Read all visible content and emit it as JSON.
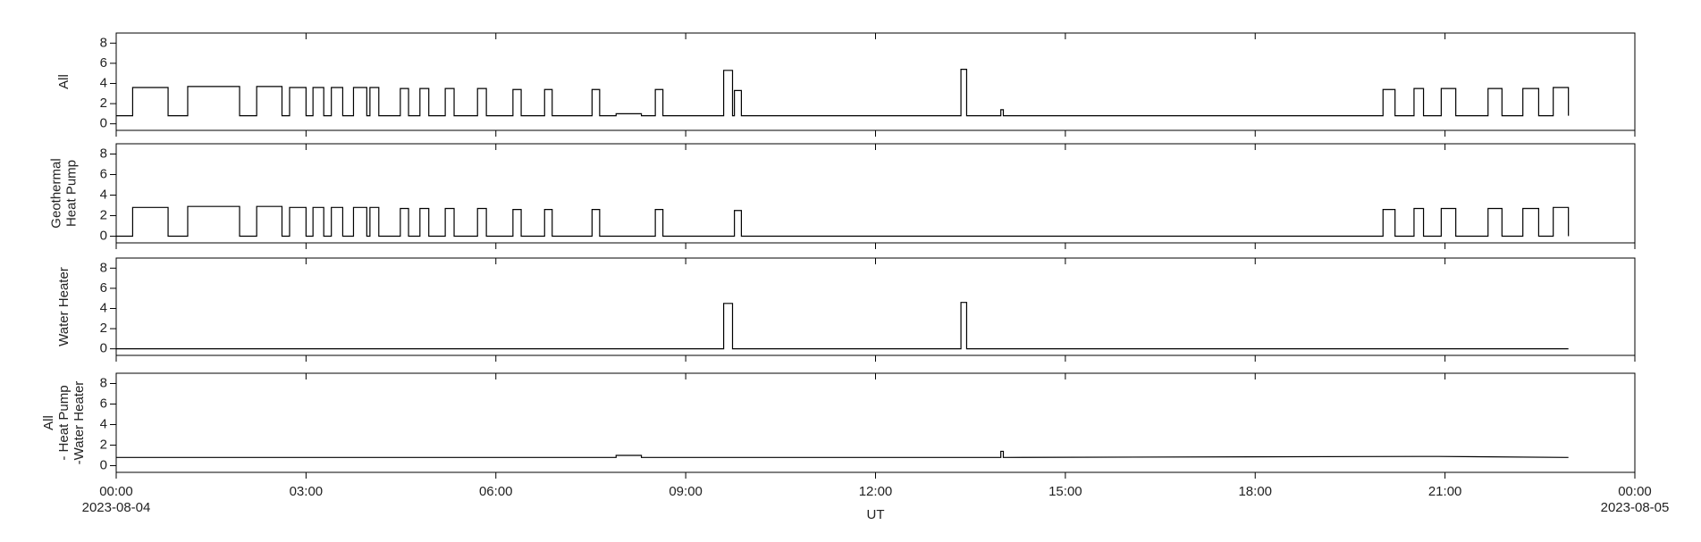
{
  "chart_data": [
    {
      "type": "line",
      "ylabel": [
        "All"
      ],
      "color": "#000000",
      "xlim": [
        0,
        24
      ],
      "ylim": [
        -0.65,
        9
      ],
      "yticks": [
        0,
        2,
        4,
        6,
        8
      ],
      "x": [
        0,
        0.26,
        0.26,
        0.82,
        0.82,
        1.13,
        1.13,
        1.95,
        1.95,
        2.22,
        2.22,
        2.62,
        2.62,
        2.74,
        2.74,
        3.0,
        3.0,
        3.11,
        3.11,
        3.28,
        3.28,
        3.4,
        3.4,
        3.58,
        3.58,
        3.75,
        3.75,
        3.96,
        3.96,
        4.01,
        4.01,
        4.15,
        4.15,
        4.49,
        4.49,
        4.62,
        4.62,
        4.8,
        4.8,
        4.94,
        4.94,
        5.2,
        5.2,
        5.34,
        5.34,
        5.71,
        5.71,
        5.85,
        5.85,
        6.27,
        6.27,
        6.4,
        6.4,
        6.77,
        6.77,
        6.89,
        6.89,
        7.52,
        7.52,
        7.64,
        7.64,
        7.9,
        7.9,
        8.3,
        8.3,
        8.52,
        8.52,
        8.64,
        8.64,
        9.6,
        9.6,
        9.74,
        9.74,
        9.77,
        9.77,
        9.88,
        9.88,
        13.35,
        13.35,
        13.44,
        13.44,
        13.98,
        13.98,
        14.02,
        14.02,
        20.02,
        20.02,
        20.21,
        20.21,
        20.51,
        20.51,
        20.66,
        20.66,
        20.94,
        20.94,
        21.17,
        21.17,
        21.68,
        21.68,
        21.9,
        21.9,
        22.23,
        22.23,
        22.48,
        22.48,
        22.71,
        22.71,
        22.95,
        22.95
      ],
      "values": [
        0.8,
        0.8,
        3.6,
        3.6,
        0.8,
        0.8,
        3.7,
        3.7,
        0.8,
        0.8,
        3.7,
        3.7,
        0.8,
        0.8,
        3.6,
        3.6,
        0.8,
        0.8,
        3.6,
        3.6,
        0.8,
        0.8,
        3.6,
        3.6,
        0.8,
        0.8,
        3.6,
        3.6,
        0.8,
        0.8,
        3.6,
        3.6,
        0.8,
        0.8,
        3.5,
        3.5,
        0.8,
        0.8,
        3.5,
        3.5,
        0.8,
        0.8,
        3.5,
        3.5,
        0.8,
        0.8,
        3.5,
        3.5,
        0.8,
        0.8,
        3.4,
        3.4,
        0.8,
        0.8,
        3.4,
        3.4,
        0.8,
        0.8,
        3.4,
        3.4,
        0.8,
        0.8,
        1.0,
        1.0,
        0.8,
        0.8,
        3.4,
        3.4,
        0.8,
        0.8,
        5.3,
        5.3,
        0.8,
        0.8,
        3.3,
        3.3,
        0.8,
        0.8,
        5.4,
        5.4,
        0.8,
        0.8,
        1.4,
        1.4,
        0.8,
        0.8,
        3.4,
        3.4,
        0.8,
        0.8,
        3.5,
        3.5,
        0.8,
        0.8,
        3.5,
        3.5,
        0.8,
        0.8,
        3.5,
        3.5,
        0.8,
        0.8,
        3.5,
        3.5,
        0.8,
        0.8,
        3.6,
        3.6,
        0.8
      ]
    },
    {
      "type": "line",
      "ylabel": [
        "Geothermal",
        "Heat Pump"
      ],
      "color": "#000000",
      "xlim": [
        0,
        24
      ],
      "ylim": [
        -0.65,
        9
      ],
      "yticks": [
        0,
        2,
        4,
        6,
        8
      ],
      "x": [
        0,
        0.26,
        0.26,
        0.82,
        0.82,
        1.13,
        1.13,
        1.95,
        1.95,
        2.22,
        2.22,
        2.62,
        2.62,
        2.74,
        2.74,
        3.0,
        3.0,
        3.11,
        3.11,
        3.28,
        3.28,
        3.4,
        3.4,
        3.58,
        3.58,
        3.75,
        3.75,
        3.96,
        3.96,
        4.01,
        4.01,
        4.15,
        4.15,
        4.49,
        4.49,
        4.62,
        4.62,
        4.8,
        4.8,
        4.94,
        4.94,
        5.2,
        5.2,
        5.34,
        5.34,
        5.71,
        5.71,
        5.85,
        5.85,
        6.27,
        6.27,
        6.4,
        6.4,
        6.77,
        6.77,
        6.89,
        6.89,
        7.52,
        7.52,
        7.64,
        7.64,
        8.52,
        8.52,
        8.64,
        8.64,
        9.77,
        9.77,
        9.88,
        9.88,
        20.02,
        20.02,
        20.21,
        20.21,
        20.51,
        20.51,
        20.66,
        20.66,
        20.94,
        20.94,
        21.17,
        21.17,
        21.68,
        21.68,
        21.9,
        21.9,
        22.23,
        22.23,
        22.48,
        22.48,
        22.71,
        22.71,
        22.95,
        22.95
      ],
      "values": [
        0,
        0,
        2.8,
        2.8,
        0,
        0,
        2.9,
        2.9,
        0,
        0,
        2.9,
        2.9,
        0,
        0,
        2.8,
        2.8,
        0,
        0,
        2.8,
        2.8,
        0,
        0,
        2.8,
        2.8,
        0,
        0,
        2.8,
        2.8,
        0,
        0,
        2.8,
        2.8,
        0,
        0,
        2.7,
        2.7,
        0,
        0,
        2.7,
        2.7,
        0,
        0,
        2.7,
        2.7,
        0,
        0,
        2.7,
        2.7,
        0,
        0,
        2.6,
        2.6,
        0,
        0,
        2.6,
        2.6,
        0,
        0,
        2.6,
        2.6,
        0,
        0,
        2.6,
        2.6,
        0,
        0,
        2.5,
        2.5,
        0,
        0,
        2.6,
        2.6,
        0,
        0,
        2.7,
        2.7,
        0,
        0,
        2.7,
        2.7,
        0,
        0,
        2.7,
        2.7,
        0,
        0,
        2.7,
        2.7,
        0,
        0,
        2.8,
        2.8,
        0
      ]
    },
    {
      "type": "line",
      "ylabel": [
        "Water Heater"
      ],
      "color": "#000000",
      "xlim": [
        0,
        24
      ],
      "ylim": [
        -0.65,
        9
      ],
      "yticks": [
        0,
        2,
        4,
        6,
        8
      ],
      "x": [
        0,
        9.6,
        9.6,
        9.74,
        9.74,
        13.35,
        13.35,
        13.44,
        13.44,
        22.95
      ],
      "values": [
        0,
        0,
        4.5,
        4.5,
        0,
        0,
        4.6,
        4.6,
        0,
        0
      ]
    },
    {
      "type": "line",
      "ylabel": [
        "All",
        "- Heat Pump",
        "-Water Heater"
      ],
      "color": "#000000",
      "xlim": [
        0,
        24
      ],
      "ylim": [
        -0.65,
        9
      ],
      "yticks": [
        0,
        2,
        4,
        6,
        8
      ],
      "x": [
        0,
        7.9,
        7.9,
        8.3,
        8.3,
        13.98,
        13.98,
        14.02,
        14.02,
        20.6,
        20.9,
        22.95
      ],
      "values": [
        0.8,
        0.8,
        1.0,
        1.0,
        0.8,
        0.8,
        1.4,
        1.4,
        0.8,
        0.9,
        0.9,
        0.8
      ],
      "xlabel": "UT",
      "xticks": [
        {
          "value": 0,
          "label": "00:00"
        },
        {
          "value": 3,
          "label": "03:00"
        },
        {
          "value": 6,
          "label": "06:00"
        },
        {
          "value": 9,
          "label": "09:00"
        },
        {
          "value": 12,
          "label": "12:00"
        },
        {
          "value": 15,
          "label": "15:00"
        },
        {
          "value": 18,
          "label": "18:00"
        },
        {
          "value": 21,
          "label": "21:00"
        },
        {
          "value": 24,
          "label": "00:00"
        }
      ],
      "date_labels": [
        {
          "value": 0,
          "label": "2023-08-04"
        },
        {
          "value": 24,
          "label": "2023-08-05"
        }
      ]
    }
  ]
}
